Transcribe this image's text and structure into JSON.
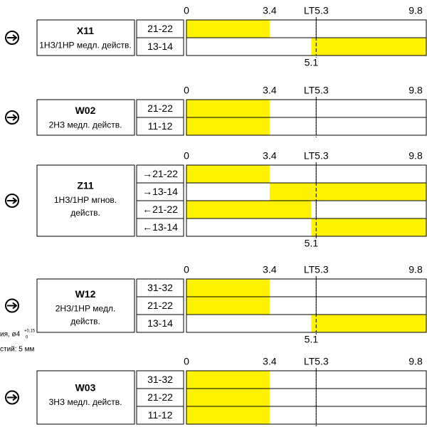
{
  "xlim": [
    0,
    9.8
  ],
  "blocks": [
    {
      "name": "X11",
      "description": [
        "1НЗ/1НР медл. действ."
      ],
      "ticks": [
        0,
        3.4,
        {
          "value": 5.3,
          "label": "LT5.3"
        },
        9.8
      ],
      "rows": [
        {
          "label": "21-22",
          "on": [
            0,
            3.4
          ]
        },
        {
          "label": "13-14",
          "on": [
            5.1,
            9.8
          ]
        }
      ],
      "note": 5.1
    },
    {
      "name": "W02",
      "description": [
        "2НЗ медл. действ."
      ],
      "ticks": [
        0,
        3.4,
        {
          "value": 5.3,
          "label": "LT5.3"
        },
        9.8
      ],
      "rows": [
        {
          "label": "21-22",
          "on": [
            0,
            3.4
          ]
        },
        {
          "label": "11-12",
          "on": [
            0,
            3.4
          ]
        }
      ]
    },
    {
      "name": "Z11",
      "description": [
        "1НЗ/1НР мгнов.",
        "действ."
      ],
      "ticks": [
        0,
        3.4,
        {
          "value": 5.3,
          "label": "LT5.3"
        },
        9.8
      ],
      "rows": [
        {
          "label": "→21-22",
          "on": [
            0,
            3.4
          ]
        },
        {
          "label": "→13-14",
          "on": [
            3.4,
            9.8
          ]
        },
        {
          "label": "←21-22",
          "on": [
            0,
            5.1
          ]
        },
        {
          "label": "←13-14",
          "on": [
            5.1,
            9.8
          ]
        }
      ],
      "note": 5.1
    },
    {
      "name": "W12",
      "description": [
        "2НЗ/1НР медл.",
        "действ."
      ],
      "ticks": [
        0,
        3.4,
        {
          "value": 5.3,
          "label": "LT5.3"
        },
        9.8
      ],
      "rows": [
        {
          "label": "31-32",
          "on": [
            0,
            3.4
          ]
        },
        {
          "label": "21-22",
          "on": [
            0,
            3.4
          ]
        },
        {
          "label": "13-14",
          "on": [
            5.1,
            9.8
          ]
        }
      ],
      "note": 5.1
    },
    {
      "name": "W03",
      "description": [
        "3НЗ медл. действ."
      ],
      "ticks": [
        0,
        3.4,
        {
          "value": 5.3,
          "label": "LT5.3"
        },
        9.8
      ],
      "rows": [
        {
          "label": "31-32",
          "on": [
            0,
            3.4
          ]
        },
        {
          "label": "21-22",
          "on": [
            0,
            3.4
          ]
        },
        {
          "label": "11-12",
          "on": [
            0,
            3.4
          ]
        }
      ]
    }
  ],
  "fragment": {
    "line1": "ия, ø4",
    "sup": "+0,15",
    "sub": "0",
    "line2": "стий: 5 мм"
  }
}
